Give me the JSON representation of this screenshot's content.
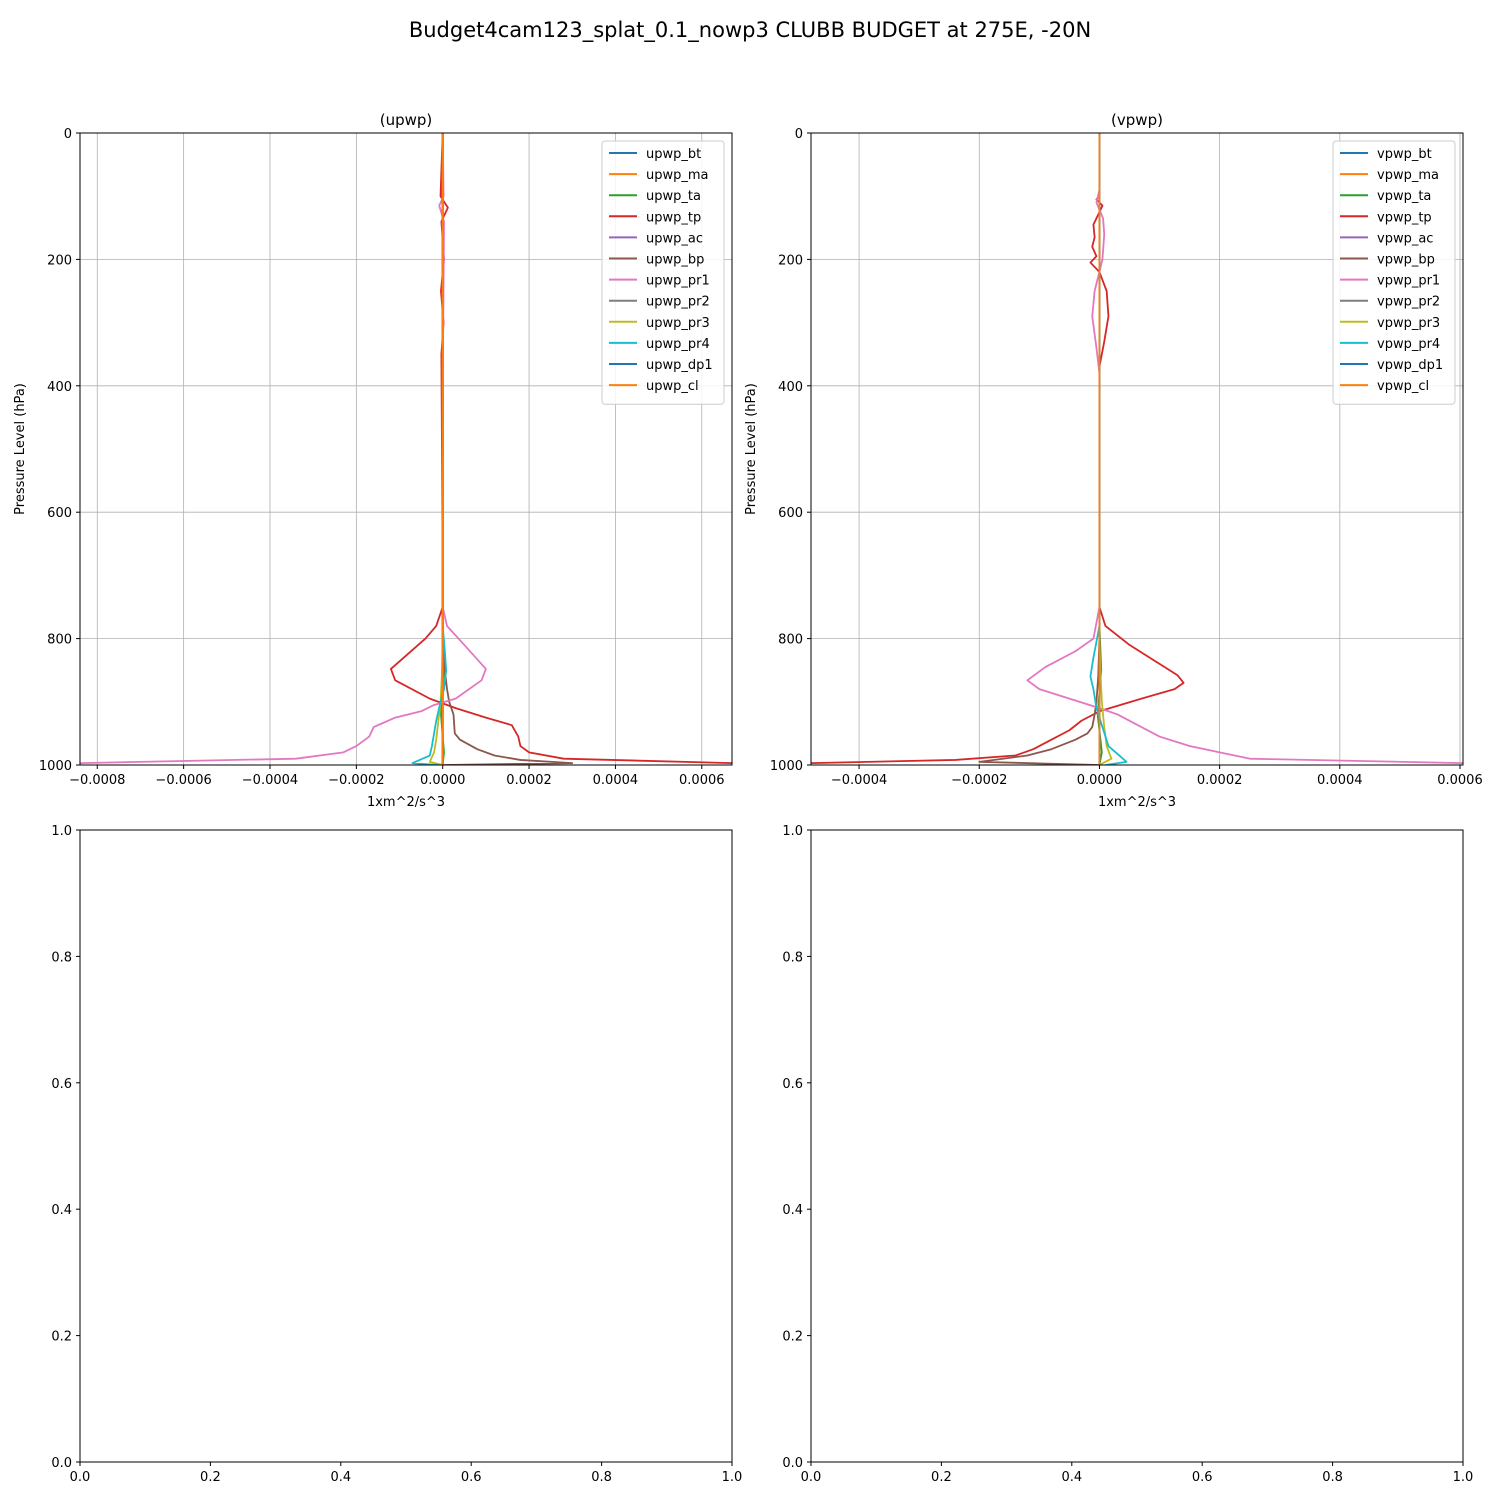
{
  "suptitle": "Budget4cam123_splat_0.1_nowp3 CLUBB BUDGET at 275E, -20N",
  "colors": [
    "#1f77b4",
    "#ff7f0e",
    "#2ca02c",
    "#d62728",
    "#9467bd",
    "#8c564b",
    "#e377c2",
    "#7f7f7f",
    "#bcbd22",
    "#17becf",
    "#1f77b4",
    "#ff7f0e"
  ],
  "chart_data": [
    {
      "type": "line",
      "title": "(upwp)",
      "xlabel": "1xm^2/s^3",
      "ylabel": "Pressure Level (hPa)",
      "xlim": [
        -0.00084,
        0.00067
      ],
      "ylim": [
        1000,
        0
      ],
      "y_inverted": true,
      "grid": true,
      "legend": "top-right",
      "xticks": [
        -0.0008,
        -0.0006,
        -0.0004,
        -0.0002,
        0.0,
        0.0002,
        0.0004,
        0.0006
      ],
      "xtick_labels": [
        "−0.0008",
        "−0.0006",
        "−0.0004",
        "−0.0002",
        "0.0000",
        "0.0002",
        "0.0004",
        "0.0006"
      ],
      "yticks": [
        0,
        200,
        400,
        600,
        800,
        1000
      ],
      "ytick_labels": [
        "0",
        "200",
        "400",
        "600",
        "800",
        "1000"
      ],
      "series": [
        {
          "name": "upwp_bt",
          "x": [
            0,
            0,
            0,
            0,
            0
          ],
          "y": [
            0,
            400,
            800,
            900,
            1000
          ]
        },
        {
          "name": "upwp_ma",
          "x": [
            0,
            0,
            0,
            0,
            0
          ],
          "y": [
            0,
            400,
            800,
            900,
            1000
          ]
        },
        {
          "name": "upwp_ta",
          "x": [
            0,
            0,
            0,
            3e-06,
            -4e-06,
            3e-06,
            0
          ],
          "y": [
            0,
            400,
            780,
            850,
            920,
            980,
            1000
          ]
        },
        {
          "name": "upwp_tp",
          "x": [
            0,
            -5e-06,
            1.2e-05,
            -3e-06,
            3e-06,
            -4e-06,
            2e-06,
            -3e-06,
            0,
            0,
            -1.5e-05,
            -4e-05,
            -9e-05,
            -0.00012,
            -0.00011,
            -3e-05,
            3e-05,
            0.0001,
            0.00016,
            0.000175,
            0.00018,
            0.0002,
            0.00028,
            0.00067
          ],
          "y": [
            0,
            100,
            118,
            140,
            200,
            250,
            300,
            350,
            700,
            750,
            780,
            800,
            830,
            848,
            866,
            895,
            910,
            925,
            937,
            955,
            970,
            980,
            990,
            997
          ]
        },
        {
          "name": "upwp_ac",
          "x": [
            0,
            0,
            0
          ],
          "y": [
            0,
            800,
            1000
          ]
        },
        {
          "name": "upwp_bp",
          "x": [
            0,
            0,
            5e-06,
            1e-05,
            1.5e-05,
            2.5e-05,
            2.8e-05,
            4e-05,
            8e-05,
            0.00012,
            0.00018,
            0.0003,
            0
          ],
          "y": [
            0,
            800,
            850,
            880,
            900,
            920,
            950,
            960,
            975,
            985,
            992,
            997,
            1000
          ]
        },
        {
          "name": "upwp_pr1",
          "x": [
            0,
            2e-06,
            -8e-06,
            3e-06,
            0,
            0,
            1e-05,
            5e-05,
            0.0001,
            9e-05,
            3e-05,
            -2e-05,
            -5e-05,
            -0.00011,
            -0.00016,
            -0.00017,
            -0.0002,
            -0.00023,
            -0.00034,
            -0.00084
          ],
          "y": [
            0,
            100,
            115,
            140,
            400,
            750,
            780,
            810,
            848,
            866,
            895,
            905,
            915,
            925,
            940,
            955,
            970,
            980,
            990,
            997
          ]
        },
        {
          "name": "upwp_pr2",
          "x": [
            0,
            0,
            0
          ],
          "y": [
            0,
            800,
            1000
          ]
        },
        {
          "name": "upwp_pr3",
          "x": [
            0,
            0,
            -2e-06,
            -5e-06,
            -1e-05,
            -1.5e-05,
            -2e-05,
            -3e-05,
            0
          ],
          "y": [
            0,
            800,
            860,
            900,
            930,
            960,
            980,
            995,
            1000
          ]
        },
        {
          "name": "upwp_pr4",
          "x": [
            0,
            0,
            5e-06,
            8e-06,
            3e-06,
            -5e-06,
            -1.5e-05,
            -2e-05,
            -2.5e-05,
            -3e-05,
            -7e-05,
            -1e-05
          ],
          "y": [
            0,
            780,
            820,
            850,
            880,
            900,
            930,
            950,
            970,
            985,
            997,
            1000
          ]
        },
        {
          "name": "upwp_dp1",
          "x": [
            0,
            0,
            0
          ],
          "y": [
            0,
            800,
            1000
          ]
        },
        {
          "name": "upwp_cl",
          "x": [
            0,
            0,
            0
          ],
          "y": [
            0,
            800,
            1000
          ]
        }
      ]
    },
    {
      "type": "line",
      "title": "(vpwp)",
      "xlabel": "1xm^2/s^3",
      "ylabel": "Pressure Level (hPa)",
      "xlim": [
        -0.00048,
        0.000605
      ],
      "ylim": [
        1000,
        0
      ],
      "y_inverted": true,
      "grid": true,
      "legend": "top-right",
      "xticks": [
        -0.0004,
        -0.0002,
        0.0,
        0.0002,
        0.0004,
        0.0006
      ],
      "xtick_labels": [
        "−0.0004",
        "−0.0002",
        "0.0000",
        "0.0002",
        "0.0004",
        "0.0006"
      ],
      "yticks": [
        0,
        200,
        400,
        600,
        800,
        1000
      ],
      "ytick_labels": [
        "0",
        "200",
        "400",
        "600",
        "800",
        "1000"
      ],
      "series": [
        {
          "name": "vpwp_bt",
          "x": [
            0,
            0,
            0,
            0,
            0
          ],
          "y": [
            0,
            400,
            800,
            900,
            1000
          ]
        },
        {
          "name": "vpwp_ma",
          "x": [
            0,
            0,
            0,
            0,
            0
          ],
          "y": [
            0,
            400,
            800,
            900,
            1000
          ]
        },
        {
          "name": "vpwp_ta",
          "x": [
            0,
            0,
            0,
            3e-06,
            -3e-06,
            4e-06,
            0
          ],
          "y": [
            0,
            400,
            780,
            850,
            920,
            980,
            1000
          ]
        },
        {
          "name": "vpwp_tp",
          "x": [
            0,
            0,
            -5e-06,
            5e-06,
            -1e-05,
            -8e-06,
            -1.2e-05,
            -5e-06,
            -1.5e-05,
            0,
            1.2e-05,
            1.5e-05,
            8e-06,
            0,
            0,
            1e-05,
            5e-05,
            0.0001,
            0.00013,
            0.00014,
            0.000125,
            7e-05,
            0,
            -3e-05,
            -5e-05,
            -8e-05,
            -0.00011,
            -0.00014,
            -0.00024,
            -0.00048
          ],
          "y": [
            0,
            100,
            105,
            115,
            145,
            165,
            180,
            195,
            205,
            220,
            250,
            290,
            330,
            370,
            750,
            780,
            810,
            840,
            858,
            870,
            880,
            895,
            915,
            930,
            945,
            960,
            975,
            985,
            992,
            997
          ]
        },
        {
          "name": "vpwp_ac",
          "x": [
            0,
            0,
            0
          ],
          "y": [
            0,
            800,
            1000
          ]
        },
        {
          "name": "vpwp_bp",
          "x": [
            0,
            0,
            -2e-06,
            -5e-06,
            -8e-06,
            -1.2e-05,
            -2e-05,
            -4e-05,
            -8e-05,
            -0.00012,
            -0.0002,
            0
          ],
          "y": [
            0,
            800,
            860,
            900,
            920,
            940,
            950,
            960,
            975,
            985,
            995,
            1000
          ]
        },
        {
          "name": "vpwp_pr1",
          "x": [
            0,
            0,
            -5e-06,
            6e-06,
            8e-06,
            5e-06,
            -8e-06,
            -1.2e-05,
            -5e-06,
            0,
            0,
            -1e-05,
            -4e-05,
            -9e-05,
            -0.00012,
            -0.0001,
            -5e-05,
            0,
            3e-05,
            6e-05,
            0.0001,
            0.00015,
            0.00021,
            0.00025,
            0.000605
          ],
          "y": [
            0,
            90,
            110,
            135,
            160,
            200,
            250,
            290,
            340,
            380,
            750,
            800,
            820,
            845,
            866,
            880,
            895,
            910,
            920,
            935,
            955,
            970,
            982,
            990,
            997
          ]
        },
        {
          "name": "vpwp_pr2",
          "x": [
            0,
            0,
            0
          ],
          "y": [
            0,
            800,
            1000
          ]
        },
        {
          "name": "vpwp_pr3",
          "x": [
            0,
            0,
            2e-06,
            4e-06,
            8e-06,
            1.2e-05,
            2e-05,
            0
          ],
          "y": [
            0,
            800,
            860,
            900,
            940,
            970,
            990,
            1000
          ]
        },
        {
          "name": "vpwp_pr4",
          "x": [
            0,
            0,
            -1e-05,
            -1.5e-05,
            -1e-05,
            -5e-06,
            5e-06,
            1.5e-05,
            4.5e-05,
            1e-05
          ],
          "y": [
            0,
            780,
            830,
            860,
            880,
            910,
            940,
            970,
            995,
            1000
          ]
        },
        {
          "name": "vpwp_dp1",
          "x": [
            0,
            0,
            0
          ],
          "y": [
            0,
            800,
            1000
          ]
        },
        {
          "name": "vpwp_cl",
          "x": [
            0,
            0,
            0
          ],
          "y": [
            0,
            800,
            1000
          ]
        }
      ]
    },
    {
      "type": "line",
      "title": "",
      "xlim": [
        0,
        1
      ],
      "ylim": [
        0,
        1
      ],
      "grid": false,
      "xticks": [
        0,
        0.2,
        0.4,
        0.6,
        0.8,
        1.0
      ],
      "xtick_labels": [
        "0.0",
        "0.2",
        "0.4",
        "0.6",
        "0.8",
        "1.0"
      ],
      "yticks": [
        0,
        0.2,
        0.4,
        0.6,
        0.8,
        1.0
      ],
      "ytick_labels": [
        "0.0",
        "0.2",
        "0.4",
        "0.6",
        "0.8",
        "1.0"
      ],
      "series": []
    },
    {
      "type": "line",
      "title": "",
      "xlim": [
        0,
        1
      ],
      "ylim": [
        0,
        1
      ],
      "grid": false,
      "xticks": [
        0,
        0.2,
        0.4,
        0.6,
        0.8,
        1.0
      ],
      "xtick_labels": [
        "0.0",
        "0.2",
        "0.4",
        "0.6",
        "0.8",
        "1.0"
      ],
      "yticks": [
        0,
        0.2,
        0.4,
        0.6,
        0.8,
        1.0
      ],
      "ytick_labels": [
        "0.0",
        "0.2",
        "0.4",
        "0.6",
        "0.8",
        "1.0"
      ],
      "series": []
    }
  ]
}
